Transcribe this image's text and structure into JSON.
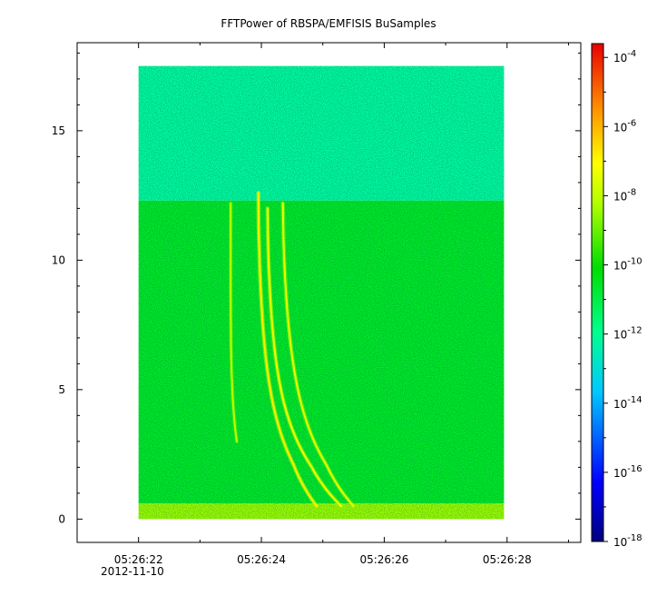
{
  "chart_data": {
    "type": "heatmap",
    "title": "FFTPower of RBSPA/EMFISIS  BuSamples",
    "xlabel": "",
    "ylabel": "",
    "x_ticks": [
      {
        "value": 22,
        "label": "05:26:22"
      },
      {
        "value": 24,
        "label": "05:26:24"
      },
      {
        "value": 26,
        "label": "05:26:26"
      },
      {
        "value": 28,
        "label": "05:26:28"
      }
    ],
    "x_sublabel": "2012-11-10",
    "x_range": [
      21.0,
      29.2
    ],
    "x_data_range": [
      22.0,
      27.95
    ],
    "y_ticks": [
      0,
      5,
      10,
      15
    ],
    "y_range": [
      -0.9,
      18.4
    ],
    "y_data_range": [
      0,
      17.5
    ],
    "colorbar": {
      "scale": "log",
      "range": [
        -18,
        -3.6
      ],
      "ticks": [
        {
          "exp": -4,
          "base": "10",
          "sup": "-4"
        },
        {
          "exp": -6,
          "base": "10",
          "sup": "-6"
        },
        {
          "exp": -8,
          "base": "10",
          "sup": "-8"
        },
        {
          "exp": -10,
          "base": "10",
          "sup": "-10"
        },
        {
          "exp": -12,
          "base": "10",
          "sup": "-12"
        },
        {
          "exp": -14,
          "base": "10",
          "sup": "-14"
        },
        {
          "exp": -16,
          "base": "10",
          "sup": "-16"
        },
        {
          "exp": -18,
          "base": "10",
          "sup": "-18"
        }
      ]
    },
    "background_levels": [
      {
        "freq_min": 12.3,
        "freq_max": 17.5,
        "log_power": -12.2
      },
      {
        "freq_min": 0.6,
        "freq_max": 12.3,
        "log_power": -10.6
      },
      {
        "freq_min": 0.0,
        "freq_max": 0.6,
        "log_power": -8.5
      }
    ],
    "chorus_traces": [
      {
        "t_start": 23.95,
        "f_start": 12.6,
        "t_asymptote": 24.2,
        "f_end": 0.5,
        "t_end": 24.9,
        "log_power": -6.8
      },
      {
        "t_start": 24.1,
        "f_start": 12.0,
        "t_asymptote": 24.4,
        "f_end": 0.5,
        "t_end": 25.3,
        "log_power": -7.2
      },
      {
        "t_start": 24.35,
        "f_start": 12.2,
        "t_asymptote": 24.7,
        "f_end": 0.5,
        "t_end": 25.5,
        "log_power": -7.4
      },
      {
        "t_start": 23.5,
        "f_start": 12.2,
        "t_asymptote": 23.5,
        "f_end": 3.0,
        "t_end": 23.6,
        "log_power": -8.0
      }
    ],
    "grid": false,
    "legend": "colorbar-right"
  }
}
